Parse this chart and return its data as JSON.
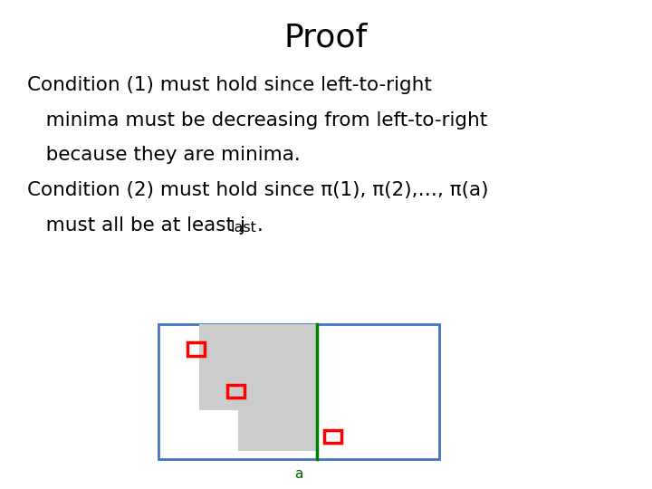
{
  "title": "Proof",
  "title_fontsize": 26,
  "background_color": "#ffffff",
  "text_color": "#000000",
  "text_fontsize": 15.5,
  "line1": "Condition (1) must hold since left-to-right",
  "line2": "   minima must be decreasing from left-to-right",
  "line3": "   because they are minima.",
  "line4": "Condition (2) must hold since π(1), π(2),…, π(a)",
  "line5_pre": "   must all be at least j",
  "line5_sub": "last",
  "line5_end": ".",
  "diagram_border_color": "#4472c4",
  "gray_color": "#cccccc",
  "green_line_color": "#008000",
  "red_color": "#ff0000",
  "arrow_color": "#000000",
  "label_a_color": "#006400",
  "label_a_fontsize": 11
}
